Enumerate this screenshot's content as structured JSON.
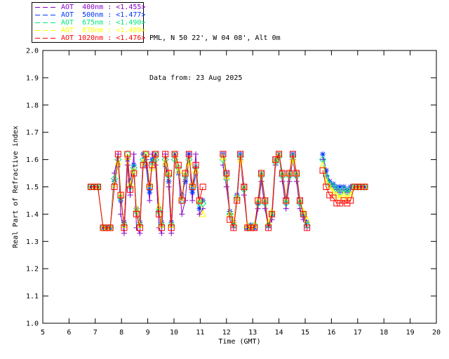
{
  "header": {
    "line1": "PML, N 50 22', W 04 08', Alt 0m",
    "line2": "Data from: 23 Aug 2025"
  },
  "legend": {
    "items": [
      {
        "label": "AOT  400nm : <1.455>",
        "color": "#8800CC"
      },
      {
        "label": "AOT  500nm : <1.477>",
        "color": "#0033FF"
      },
      {
        "label": "AOT  675nm : <1.490>",
        "color": "#00E878"
      },
      {
        "label": "AOT  870nm : <1.489>",
        "color": "#FFFF00"
      },
      {
        "label": "AOT 1020nm : <1.476>",
        "color": "#FF0000"
      }
    ]
  },
  "chart_data": {
    "type": "line",
    "title": "",
    "xlabel": "Time (GMT)",
    "ylabel": "Real Part of Refractive index",
    "xlim": [
      5,
      20
    ],
    "ylim": [
      1.0,
      2.0
    ],
    "xticks": [
      5,
      6,
      7,
      8,
      9,
      10,
      11,
      12,
      13,
      14,
      15,
      16,
      17,
      18,
      19,
      20
    ],
    "yticks": [
      1.0,
      1.1,
      1.2,
      1.3,
      1.4,
      1.5,
      1.6,
      1.7,
      1.8,
      1.9,
      2.0
    ],
    "grid": false,
    "legend_position": "top-left-outside",
    "segments_t": [
      [
        6.83,
        6.97,
        7.1,
        7.3,
        7.43,
        7.57,
        7.73,
        7.87,
        7.97,
        8.1,
        8.23,
        8.33,
        8.47,
        8.57,
        8.7,
        8.83,
        8.93,
        9.07,
        9.17,
        9.3,
        9.43,
        9.53,
        9.67,
        9.8,
        9.9,
        10.03,
        10.17,
        10.3,
        10.43,
        10.57,
        10.7,
        10.83,
        10.97,
        11.1
      ],
      [
        11.87,
        12.0,
        12.13,
        12.27,
        12.4,
        12.53,
        12.67,
        12.8,
        12.93,
        13.07,
        13.2,
        13.33,
        13.47,
        13.6,
        13.73,
        13.87,
        14.0,
        14.13,
        14.27,
        14.4,
        14.53,
        14.67,
        14.8,
        14.93,
        15.07
      ],
      [
        15.67,
        15.8,
        15.93,
        16.07,
        16.2,
        16.33,
        16.47,
        16.6,
        16.73,
        16.87,
        17.0,
        17.13,
        17.27
      ]
    ],
    "series": [
      {
        "name": "AOT 400nm",
        "mean": "<1.455>",
        "color": "#8800CC",
        "marker": "plus",
        "segments_v": [
          [
            1.5,
            1.5,
            1.5,
            1.35,
            1.35,
            1.35,
            1.55,
            1.62,
            1.4,
            1.33,
            1.58,
            1.47,
            1.62,
            1.35,
            1.33,
            1.62,
            1.6,
            1.45,
            1.62,
            1.58,
            1.35,
            1.33,
            1.62,
            1.5,
            1.33,
            1.62,
            1.55,
            1.4,
            1.45,
            1.62,
            1.45,
            1.62,
            1.4,
            1.42
          ],
          [
            1.58,
            1.5,
            1.4,
            1.35,
            1.45,
            1.6,
            1.47,
            1.35,
            1.35,
            1.35,
            1.42,
            1.52,
            1.42,
            1.35,
            1.38,
            1.58,
            1.62,
            1.52,
            1.42,
            1.52,
            1.6,
            1.52,
            1.42,
            1.38,
            1.35
          ],
          [
            1.6,
            1.54,
            1.51,
            1.5,
            1.49,
            1.48,
            1.49,
            1.48,
            1.49,
            1.5,
            1.5,
            1.5,
            1.5
          ]
        ]
      },
      {
        "name": "AOT 500nm",
        "mean": "<1.477>",
        "color": "#0033FF",
        "marker": "asterisk",
        "segments_v": [
          [
            1.5,
            1.5,
            1.5,
            1.35,
            1.35,
            1.35,
            1.52,
            1.58,
            1.45,
            1.37,
            1.6,
            1.52,
            1.58,
            1.42,
            1.37,
            1.62,
            1.58,
            1.48,
            1.6,
            1.62,
            1.42,
            1.37,
            1.58,
            1.52,
            1.37,
            1.62,
            1.55,
            1.47,
            1.52,
            1.62,
            1.48,
            1.55,
            1.42,
            1.45
          ],
          [
            1.62,
            1.55,
            1.41,
            1.37,
            1.47,
            1.62,
            1.5,
            1.35,
            1.36,
            1.35,
            1.44,
            1.55,
            1.45,
            1.36,
            1.4,
            1.6,
            1.62,
            1.55,
            1.45,
            1.55,
            1.62,
            1.55,
            1.45,
            1.4,
            1.37
          ],
          [
            1.62,
            1.56,
            1.52,
            1.51,
            1.5,
            1.5,
            1.5,
            1.49,
            1.5,
            1.5,
            1.5,
            1.5,
            1.5
          ]
        ]
      },
      {
        "name": "AOT 675nm",
        "mean": "<1.490>",
        "color": "#00E878",
        "marker": "diamond",
        "segments_v": [
          [
            1.5,
            1.5,
            1.5,
            1.35,
            1.35,
            1.35,
            1.53,
            1.6,
            1.46,
            1.36,
            1.62,
            1.5,
            1.57,
            1.41,
            1.36,
            1.6,
            1.62,
            1.5,
            1.59,
            1.6,
            1.41,
            1.36,
            1.6,
            1.54,
            1.36,
            1.6,
            1.57,
            1.45,
            1.54,
            1.6,
            1.5,
            1.57,
            1.44,
            1.44
          ],
          [
            1.6,
            1.53,
            1.4,
            1.36,
            1.46,
            1.61,
            1.49,
            1.35,
            1.35,
            1.36,
            1.44,
            1.54,
            1.44,
            1.36,
            1.4,
            1.59,
            1.61,
            1.54,
            1.44,
            1.54,
            1.61,
            1.54,
            1.44,
            1.4,
            1.36
          ],
          [
            1.6,
            1.54,
            1.51,
            1.5,
            1.49,
            1.48,
            1.49,
            1.48,
            1.49,
            1.5,
            1.5,
            1.5,
            1.5
          ]
        ]
      },
      {
        "name": "AOT 870nm",
        "mean": "<1.489>",
        "color": "#FFFF00",
        "marker": "triangle",
        "segments_v": [
          [
            1.5,
            1.5,
            1.5,
            1.35,
            1.35,
            1.35,
            1.51,
            1.59,
            1.47,
            1.36,
            1.61,
            1.51,
            1.56,
            1.42,
            1.36,
            1.59,
            1.62,
            1.51,
            1.57,
            1.62,
            1.43,
            1.36,
            1.59,
            1.55,
            1.36,
            1.62,
            1.56,
            1.46,
            1.55,
            1.59,
            1.51,
            1.56,
            1.45,
            1.4
          ],
          [
            1.61,
            1.54,
            1.4,
            1.37,
            1.46,
            1.6,
            1.5,
            1.36,
            1.35,
            1.36,
            1.45,
            1.55,
            1.45,
            1.37,
            1.41,
            1.6,
            1.62,
            1.55,
            1.45,
            1.55,
            1.6,
            1.55,
            1.45,
            1.41,
            1.38
          ],
          [
            1.58,
            1.52,
            1.5,
            1.48,
            1.47,
            1.46,
            1.47,
            1.46,
            1.47,
            1.5,
            1.5,
            1.5,
            1.5
          ]
        ]
      },
      {
        "name": "AOT 1020nm",
        "mean": "<1.476>",
        "color": "#FF0000",
        "marker": "square",
        "segments_v": [
          [
            1.5,
            1.5,
            1.5,
            1.35,
            1.35,
            1.35,
            1.5,
            1.62,
            1.47,
            1.35,
            1.62,
            1.49,
            1.55,
            1.4,
            1.35,
            1.58,
            1.62,
            1.5,
            1.58,
            1.62,
            1.4,
            1.35,
            1.62,
            1.55,
            1.35,
            1.62,
            1.58,
            1.45,
            1.55,
            1.62,
            1.5,
            1.58,
            1.45,
            1.5
          ],
          [
            1.62,
            1.55,
            1.38,
            1.35,
            1.45,
            1.62,
            1.5,
            1.35,
            1.35,
            1.35,
            1.45,
            1.55,
            1.45,
            1.35,
            1.4,
            1.6,
            1.62,
            1.55,
            1.45,
            1.55,
            1.62,
            1.55,
            1.45,
            1.4,
            1.35
          ],
          [
            1.56,
            1.5,
            1.47,
            1.46,
            1.44,
            1.44,
            1.45,
            1.44,
            1.45,
            1.5,
            1.5,
            1.5,
            1.5
          ]
        ]
      }
    ]
  }
}
